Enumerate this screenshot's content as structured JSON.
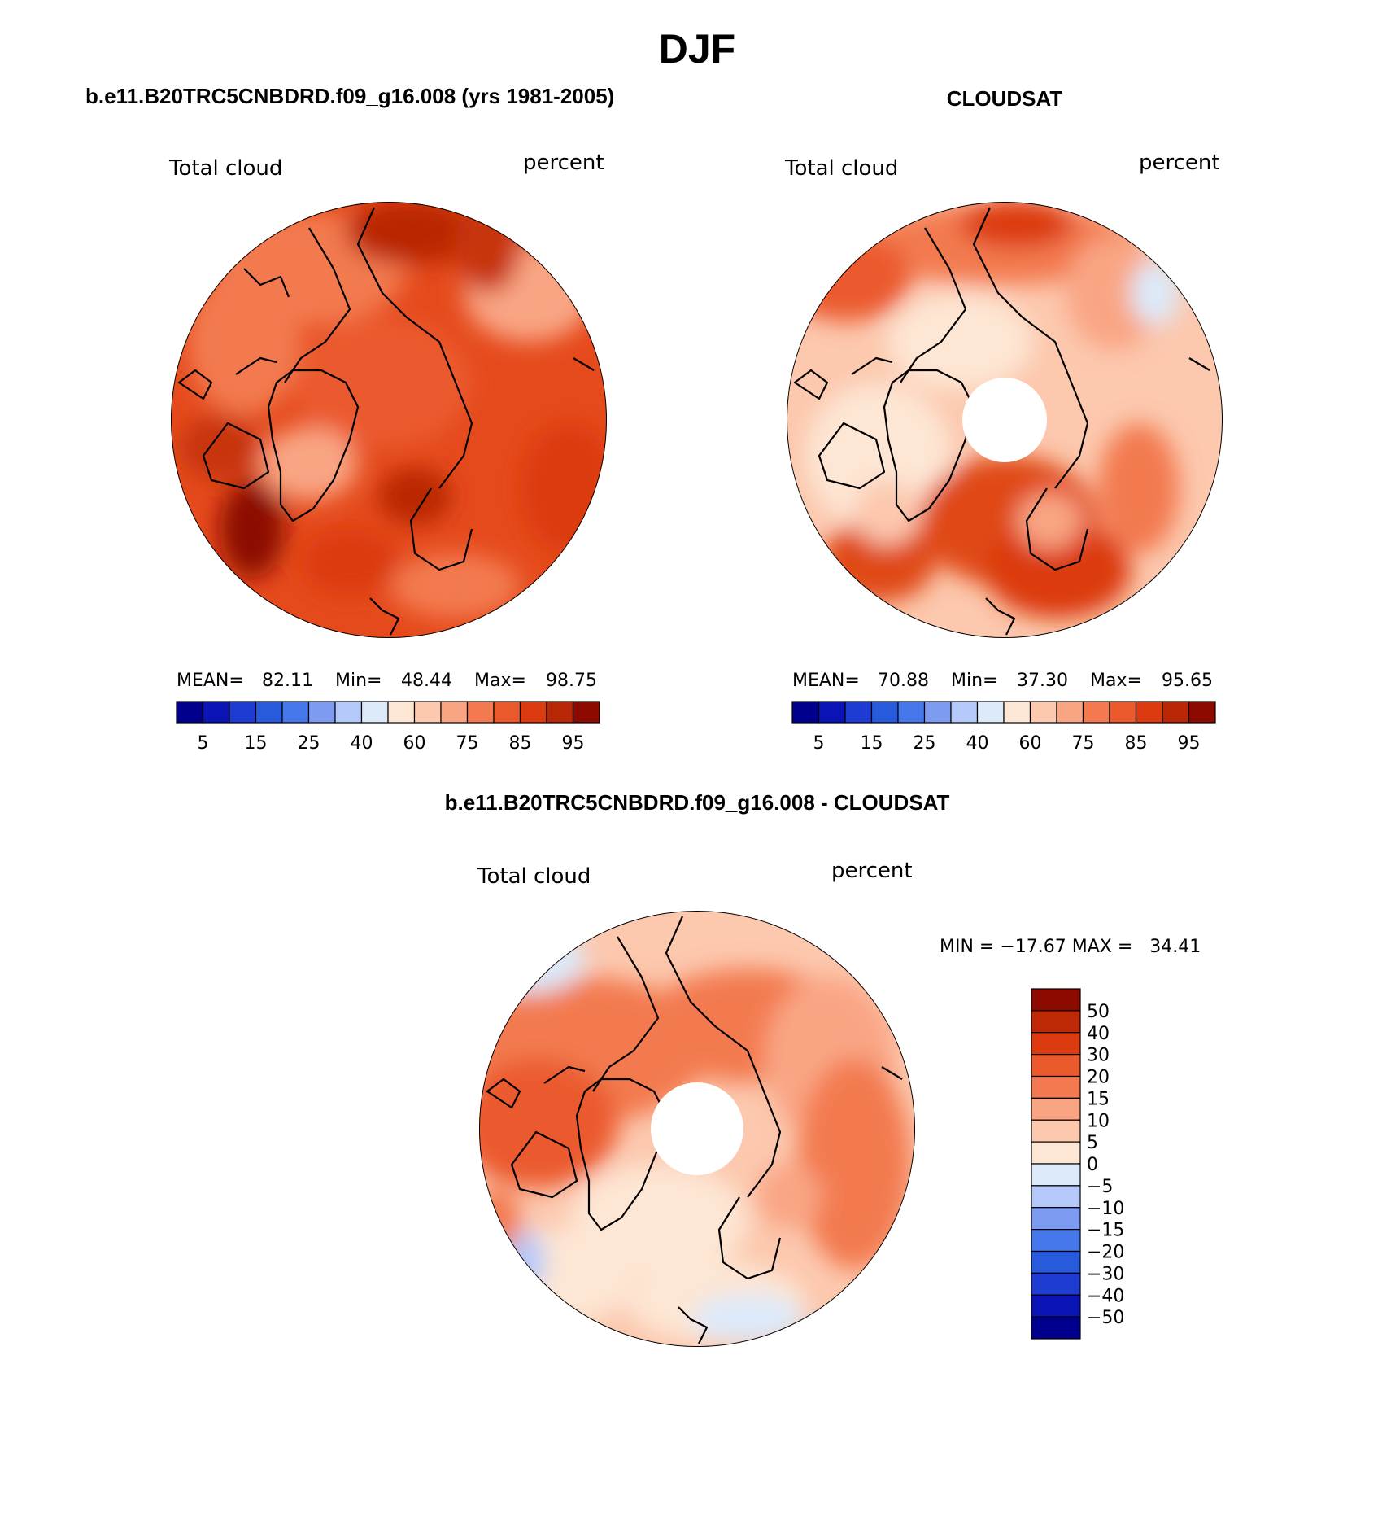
{
  "page": {
    "title": "DJF"
  },
  "panels": [
    {
      "id": "model",
      "header": "b.e11.B20TRC5CNBDRD.f09_g16.008 (yrs 1981-2005)",
      "left_label": "Total cloud",
      "right_label": "percent",
      "stats": {
        "mean_label": "MEAN=",
        "mean": "82.11",
        "min_label": "Min=",
        "min": "48.44",
        "max_label": "Max=",
        "max": "98.75"
      },
      "colorbar_ticks": [
        "5",
        "15",
        "25",
        "40",
        "60",
        "75",
        "85",
        "95"
      ],
      "has_polar_hole": false
    },
    {
      "id": "obs",
      "header": "CLOUDSAT",
      "left_label": "Total cloud",
      "right_label": "percent",
      "stats": {
        "mean_label": "MEAN=",
        "mean": "70.88",
        "min_label": "Min=",
        "min": "37.30",
        "max_label": "Max=",
        "max": "95.65"
      },
      "colorbar_ticks": [
        "5",
        "15",
        "25",
        "40",
        "60",
        "75",
        "85",
        "95"
      ],
      "has_polar_hole": true
    },
    {
      "id": "diff",
      "header": "b.e11.B20TRC5CNBDRD.f09_g16.008 - CLOUDSAT",
      "left_label": "Total cloud",
      "right_label": "percent",
      "minmax_text": "MIN = −17.67 MAX =   34.41",
      "colorbar_ticks": [
        "50",
        "40",
        "30",
        "20",
        "15",
        "10",
        "5",
        "0",
        "−5",
        "−10",
        "−15",
        "−20",
        "−30",
        "−40",
        "−50"
      ],
      "has_polar_hole": true
    }
  ],
  "palettes": {
    "abs": [
      "#00008c",
      "#0a14b4",
      "#1e3cd2",
      "#285adc",
      "#4678eb",
      "#7d9bf0",
      "#b4c8fa",
      "#dceafa",
      "#fde6d4",
      "#fcc8ae",
      "#f9a584",
      "#f37a50",
      "#eb5a2d",
      "#dc3a0f",
      "#b92806",
      "#8c0a00"
    ],
    "diff": [
      "#8c0a00",
      "#be2a08",
      "#dc3a0f",
      "#eb5a2d",
      "#f37a50",
      "#f9a584",
      "#fcc8ae",
      "#fde6d4",
      "#dceafa",
      "#b4c8fa",
      "#7d9bf0",
      "#4678eb",
      "#285adc",
      "#1e3cd2",
      "#0a14b4",
      "#00008c"
    ]
  }
}
